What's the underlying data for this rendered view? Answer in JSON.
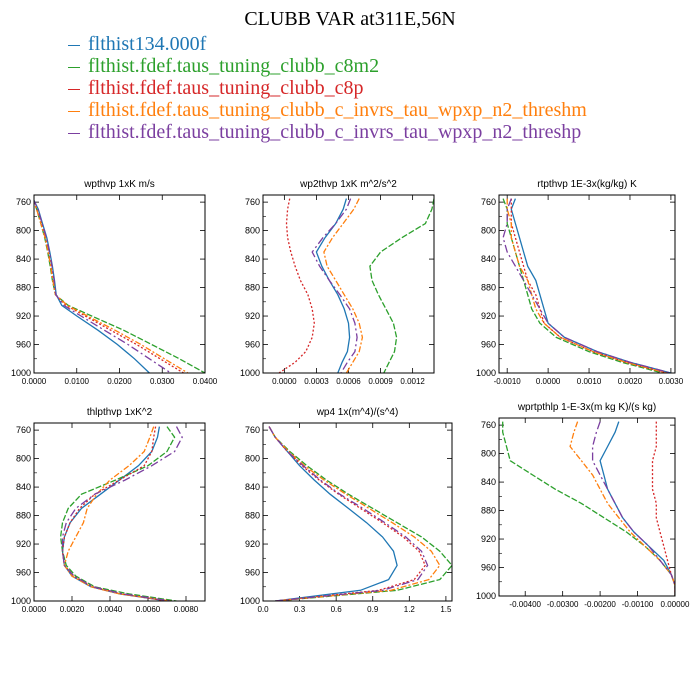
{
  "title": "CLUBB VAR at311E,56N",
  "legend": [
    {
      "name": "flthist134.000f",
      "color": "#1f77b4"
    },
    {
      "name": "flthist.fdef.taus_tuning_clubb_c8m2",
      "color": "#2ca02c"
    },
    {
      "name": "flthist.fdef.taus_tuning_clubb_c8p",
      "color": "#d62728"
    },
    {
      "name": "flthist.fdef.taus_tuning_clubb_c_invrs_tau_wpxp_n2_threshm",
      "color": "#ff7f0e"
    },
    {
      "name": "flthist.fdef.taus_tuning_clubb_c_invrs_tau_wpxp_n2_threshp",
      "color": "#7b3fa0"
    }
  ],
  "chart_data": [
    {
      "type": "line",
      "title": "wpthvp  1xK m/s",
      "xlim": [
        0,
        0.04
      ],
      "ylim": [
        1000,
        750
      ],
      "xticks": [
        "0.0000",
        "0.0100",
        "0.0200",
        "0.0300",
        "0.0400"
      ],
      "xtick_values": [
        0,
        0.01,
        0.02,
        0.03,
        0.04
      ],
      "yticks": [
        "760",
        "800",
        "840",
        "880",
        "920",
        "960",
        "1000"
      ],
      "ytick_values": [
        760,
        800,
        840,
        880,
        920,
        960,
        1000
      ],
      "y": [
        755,
        770,
        790,
        810,
        830,
        850,
        870,
        890,
        905,
        920,
        940,
        960,
        980,
        1000
      ],
      "series": [
        {
          "values": [
            -0.0002,
            0.001,
            0.002,
            0.003,
            0.0037,
            0.0043,
            0.0048,
            0.0052,
            0.0065,
            0.01,
            0.015,
            0.0195,
            0.0235,
            0.027
          ]
        },
        {
          "values": [
            -0.0003,
            0.0006,
            0.0016,
            0.0025,
            0.0032,
            0.0038,
            0.0043,
            0.005,
            0.008,
            0.0135,
            0.021,
            0.0275,
            0.034,
            0.04
          ]
        },
        {
          "values": [
            -0.0003,
            0.0007,
            0.0017,
            0.0027,
            0.0034,
            0.004,
            0.0045,
            0.005,
            0.0075,
            0.012,
            0.018,
            0.024,
            0.0295,
            0.035
          ]
        },
        {
          "values": [
            -0.0003,
            0.0006,
            0.0016,
            0.0026,
            0.0033,
            0.0039,
            0.0044,
            0.005,
            0.0078,
            0.0125,
            0.019,
            0.025,
            0.0305,
            0.036
          ]
        },
        {
          "values": [
            -0.0002,
            0.0009,
            0.0019,
            0.0029,
            0.0036,
            0.0042,
            0.0047,
            0.0051,
            0.007,
            0.011,
            0.0165,
            0.022,
            0.027,
            0.032
          ]
        }
      ]
    },
    {
      "type": "line",
      "title": "wp2thvp  1xK m^2/s^2",
      "xlim": [
        -0.0002,
        0.0014
      ],
      "ylim": [
        1000,
        750
      ],
      "xticks": [
        "0.0000",
        "0.0003",
        "0.0006",
        "0.0009",
        "0.0012"
      ],
      "xtick_values": [
        0,
        0.0003,
        0.0006,
        0.0009,
        0.0012
      ],
      "yticks": [
        "760",
        "800",
        "840",
        "880",
        "920",
        "960",
        "1000"
      ],
      "ytick_values": [
        760,
        800,
        840,
        880,
        920,
        960,
        1000
      ],
      "y": [
        755,
        770,
        790,
        810,
        830,
        850,
        870,
        890,
        910,
        930,
        950,
        970,
        985,
        1000
      ],
      "series": [
        {
          "values": [
            0.00058,
            0.00055,
            0.00048,
            0.00038,
            0.0003,
            0.00035,
            0.00042,
            0.0005,
            0.00056,
            0.0006,
            0.00061,
            0.00059,
            0.00054,
            0.0005
          ]
        },
        {
          "values": [
            0.0014,
            0.00138,
            0.00132,
            0.0011,
            0.0009,
            0.0008,
            0.00082,
            0.00088,
            0.00095,
            0.00102,
            0.00105,
            0.00103,
            0.00098,
            0.00093
          ]
        },
        {
          "values": [
            5e-05,
            3e-05,
            2e-05,
            3e-05,
            6e-05,
            0.0001,
            0.00015,
            0.00022,
            0.00026,
            0.00028,
            0.00026,
            0.0002,
            0.0001,
            -5e-05
          ]
        },
        {
          "values": [
            0.0007,
            0.00065,
            0.00055,
            0.00045,
            0.00037,
            0.0004,
            0.00048,
            0.00056,
            0.00064,
            0.0007,
            0.00073,
            0.0007,
            0.00064,
            0.00058
          ]
        },
        {
          "values": [
            0.00062,
            0.00058,
            0.00048,
            0.00036,
            0.00026,
            0.00033,
            0.00042,
            0.00052,
            0.00061,
            0.00066,
            0.00068,
            0.00066,
            0.00059,
            0.00053
          ]
        }
      ]
    },
    {
      "type": "line",
      "title": "rtpthvp  1E-3x(kg/kg) K",
      "xlim": [
        -0.0012,
        0.0031
      ],
      "ylim": [
        1000,
        750
      ],
      "xticks": [
        "-0.0010",
        "0.0000",
        "0.0010",
        "0.0020",
        "0.0030"
      ],
      "xtick_values": [
        -0.001,
        0,
        0.001,
        0.002,
        0.003
      ],
      "yticks": [
        "760",
        "800",
        "840",
        "880",
        "920",
        "960",
        "1000"
      ],
      "ytick_values": [
        760,
        800,
        840,
        880,
        920,
        960,
        1000
      ],
      "y": [
        755,
        770,
        790,
        810,
        830,
        850,
        870,
        890,
        910,
        930,
        950,
        970,
        985,
        1000
      ],
      "series": [
        {
          "values": [
            -0.0008,
            -0.0009,
            -0.0008,
            -0.0007,
            -0.0006,
            -0.0005,
            -0.0003,
            -0.0002,
            -0.0001,
            0.0,
            0.0004,
            0.0012,
            0.002,
            0.003
          ]
        },
        {
          "values": [
            -0.0011,
            -0.001,
            -0.001,
            -0.0009,
            -0.0008,
            -0.0007,
            -0.0006,
            -0.0005,
            -0.0004,
            -0.0002,
            0.0002,
            0.001,
            0.0018,
            0.0028
          ]
        },
        {
          "values": [
            -0.0009,
            -0.0009,
            -0.0009,
            -0.0008,
            -0.0007,
            -0.0006,
            -0.0005,
            -0.0003,
            -0.0002,
            -0.0001,
            0.0003,
            0.0011,
            0.0019,
            0.0029
          ]
        },
        {
          "values": [
            -0.001,
            -0.001,
            -0.0009,
            -0.0009,
            -0.0008,
            -0.0007,
            -0.0005,
            -0.0004,
            -0.0003,
            -0.0001,
            0.0003,
            0.0011,
            0.0019,
            0.0029
          ]
        },
        {
          "values": [
            -0.0009,
            -0.001,
            -0.001,
            -0.0011,
            -0.001,
            -0.0008,
            -0.0006,
            -0.0004,
            -0.0002,
            0.0,
            0.0004,
            0.0012,
            0.002,
            0.003
          ]
        }
      ]
    },
    {
      "type": "line",
      "title": "thlpthvp  1xK^2",
      "xlim": [
        0,
        0.009
      ],
      "ylim": [
        1000,
        750
      ],
      "xticks": [
        "0.0000",
        "0.0020",
        "0.0040",
        "0.0060",
        "0.0080"
      ],
      "xtick_values": [
        0,
        0.002,
        0.004,
        0.006,
        0.008
      ],
      "yticks": [
        "760",
        "800",
        "840",
        "880",
        "920",
        "960",
        "1000"
      ],
      "ytick_values": [
        760,
        800,
        840,
        880,
        920,
        960,
        1000
      ],
      "y": [
        755,
        770,
        790,
        810,
        830,
        850,
        870,
        890,
        910,
        930,
        950,
        965,
        980,
        990,
        1000
      ],
      "series": [
        {
          "values": [
            0.0066,
            0.0065,
            0.0062,
            0.0055,
            0.0045,
            0.0035,
            0.0025,
            0.0019,
            0.0016,
            0.0015,
            0.0016,
            0.002,
            0.003,
            0.0045,
            0.007
          ]
        },
        {
          "values": [
            0.007,
            0.0074,
            0.007,
            0.006,
            0.0043,
            0.0025,
            0.0018,
            0.0015,
            0.0014,
            0.0015,
            0.0017,
            0.0022,
            0.0032,
            0.005,
            0.0075
          ]
        },
        {
          "values": [
            0.0064,
            0.0063,
            0.0062,
            0.0058,
            0.0045,
            0.0032,
            0.0024,
            0.0019,
            0.0016,
            0.0015,
            0.0016,
            0.0021,
            0.0031,
            0.0046,
            0.007
          ]
        },
        {
          "values": [
            0.0063,
            0.0061,
            0.0058,
            0.005,
            0.004,
            0.0033,
            0.0028,
            0.0026,
            0.0022,
            0.0018,
            0.0016,
            0.002,
            0.003,
            0.0045,
            0.0072
          ]
        },
        {
          "values": [
            0.0075,
            0.0078,
            0.0074,
            0.0062,
            0.0048,
            0.0032,
            0.0022,
            0.0017,
            0.0015,
            0.0015,
            0.0016,
            0.0021,
            0.0031,
            0.0047,
            0.0072
          ]
        }
      ]
    },
    {
      "type": "line",
      "title": "wp4  1x(m^4)/(s^4)",
      "xlim": [
        0,
        1.55
      ],
      "ylim": [
        1000,
        750
      ],
      "xticks": [
        "0.0",
        "0.3",
        "0.6",
        "0.9",
        "1.2",
        "1.5"
      ],
      "xtick_values": [
        0,
        0.3,
        0.6,
        0.9,
        1.2,
        1.5
      ],
      "yticks": [
        "760",
        "800",
        "840",
        "880",
        "920",
        "960",
        "1000"
      ],
      "ytick_values": [
        760,
        800,
        840,
        880,
        920,
        960,
        1000
      ],
      "y": [
        755,
        770,
        790,
        810,
        830,
        850,
        870,
        890,
        910,
        930,
        950,
        970,
        985,
        1000
      ],
      "series": [
        {
          "values": [
            0.05,
            0.1,
            0.2,
            0.3,
            0.42,
            0.55,
            0.7,
            0.85,
            0.98,
            1.07,
            1.1,
            1.03,
            0.8,
            0.1
          ]
        },
        {
          "values": [
            0.05,
            0.1,
            0.22,
            0.36,
            0.52,
            0.7,
            0.9,
            1.1,
            1.3,
            1.45,
            1.55,
            1.45,
            1.1,
            0.1
          ]
        },
        {
          "values": [
            0.05,
            0.1,
            0.2,
            0.32,
            0.46,
            0.62,
            0.8,
            0.98,
            1.15,
            1.28,
            1.33,
            1.24,
            0.95,
            0.1
          ]
        },
        {
          "values": [
            0.05,
            0.1,
            0.21,
            0.34,
            0.5,
            0.68,
            0.87,
            1.06,
            1.24,
            1.38,
            1.45,
            1.36,
            1.05,
            0.1
          ]
        },
        {
          "values": [
            0.05,
            0.1,
            0.2,
            0.33,
            0.47,
            0.63,
            0.82,
            1.0,
            1.17,
            1.3,
            1.35,
            1.27,
            0.98,
            0.1
          ]
        }
      ]
    },
    {
      "type": "line",
      "title": "wprtpthlp  1-E-3x(m kg K)/(s kg)",
      "xlim": [
        -0.0047,
        0
      ],
      "ylim": [
        1000,
        750
      ],
      "xticks": [
        "-0.00400",
        "-0.00300",
        "-0.00200",
        "-0.00100",
        "0.00000"
      ],
      "xtick_values": [
        -0.004,
        -0.003,
        -0.002,
        -0.001,
        0
      ],
      "yticks": [
        "760",
        "800",
        "840",
        "880",
        "920",
        "960",
        "1000"
      ],
      "ytick_values": [
        760,
        800,
        840,
        880,
        920,
        960,
        1000
      ],
      "y": [
        755,
        770,
        790,
        810,
        830,
        850,
        870,
        890,
        910,
        930,
        950,
        970,
        985,
        1000
      ],
      "series": [
        {
          "values": [
            -0.0015,
            -0.0016,
            -0.0018,
            -0.002,
            -0.0019,
            -0.0018,
            -0.0016,
            -0.0014,
            -0.0011,
            -0.0007,
            -0.0003,
            -0.0001,
            0.0,
            0.0
          ]
        },
        {
          "values": [
            -0.0046,
            -0.0046,
            -0.0045,
            -0.0044,
            -0.0038,
            -0.0032,
            -0.0025,
            -0.0019,
            -0.0013,
            -0.0008,
            -0.0004,
            -0.0001,
            0.0,
            0.0
          ]
        },
        {
          "values": [
            -0.0005,
            -0.0005,
            -0.0005,
            -0.0006,
            -0.0006,
            -0.0006,
            -0.0005,
            -0.0005,
            -0.0004,
            -0.0003,
            -0.0002,
            -0.0001,
            0.0,
            0.0
          ]
        },
        {
          "values": [
            -0.0026,
            -0.0027,
            -0.0028,
            -0.0025,
            -0.0022,
            -0.002,
            -0.0018,
            -0.0015,
            -0.0012,
            -0.0008,
            -0.0004,
            -0.0001,
            0.0,
            0.0
          ]
        },
        {
          "values": [
            -0.002,
            -0.0021,
            -0.0022,
            -0.0022,
            -0.002,
            -0.0018,
            -0.0016,
            -0.0014,
            -0.0011,
            -0.0007,
            -0.0004,
            -0.0001,
            0.0,
            0.0
          ]
        }
      ]
    }
  ]
}
